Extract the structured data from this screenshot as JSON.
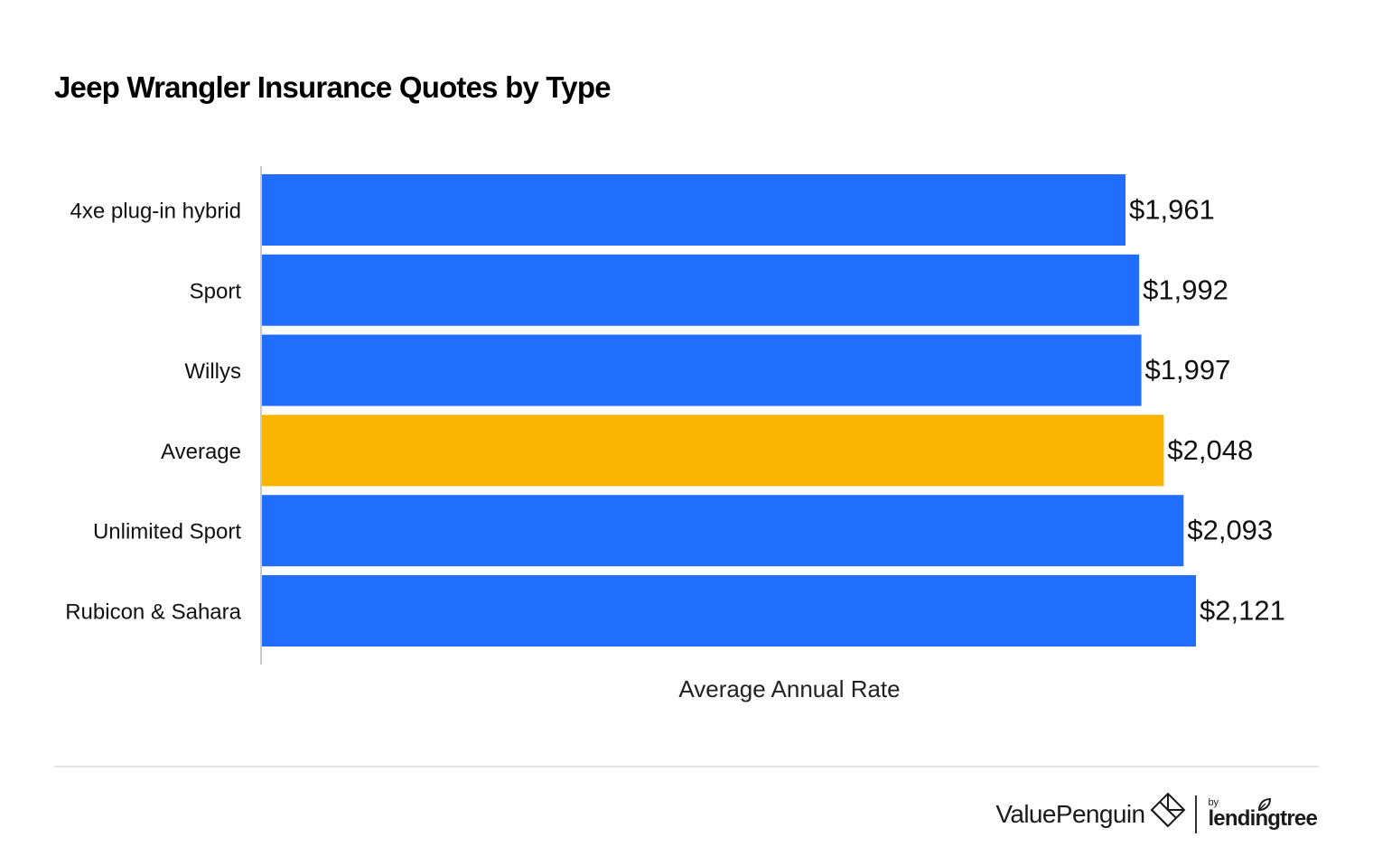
{
  "chart_data": {
    "type": "bar",
    "orientation": "horizontal",
    "title": "Jeep Wrangler Insurance Quotes by Type",
    "xlabel": "Average Annual Rate",
    "ylabel": "",
    "categories": [
      "4xe plug-in hybrid",
      "Sport",
      "Willys",
      "Average",
      "Unlimited Sport",
      "Rubicon & Sahara"
    ],
    "values": [
      1961,
      1992,
      1997,
      2048,
      2093,
      2121
    ],
    "value_labels": [
      "$1,961",
      "$1,992",
      "$1,997",
      "$2,048",
      "$2,093",
      "$2,121"
    ],
    "highlight_index": 3,
    "colors": {
      "bar": "#216dfe",
      "highlight": "#f9b400",
      "axis": "#c8c8c8"
    },
    "xlim": [
      0,
      2121
    ],
    "grid": false,
    "legend": "none"
  },
  "footer": {
    "brand_name": "ValuePenguin",
    "by_text": "by",
    "partner_name": "lendingtree",
    "brand_icon": "valuepenguin-diamond-icon",
    "partner_icon": "lendingtree-leaf-icon"
  }
}
